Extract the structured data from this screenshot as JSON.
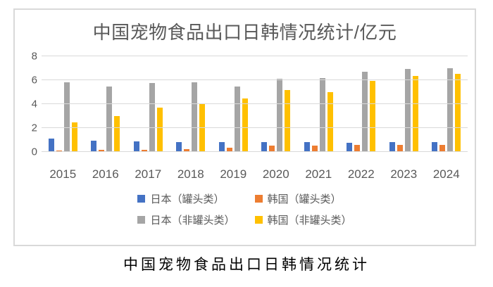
{
  "chart_data": {
    "type": "bar",
    "title": "中国宠物食品出口日韩情况统计/亿元",
    "caption": "中国宠物食品出口日韩情况统计",
    "categories": [
      "2015",
      "2016",
      "2017",
      "2018",
      "2019",
      "2020",
      "2021",
      "2022",
      "2023",
      "2024"
    ],
    "series": [
      {
        "id": "japan-canned",
        "name": "日本（罐头类）",
        "color": "#4472C4",
        "values": [
          1.1,
          0.95,
          0.9,
          0.8,
          0.8,
          0.85,
          0.8,
          0.75,
          0.8,
          0.8
        ]
      },
      {
        "id": "korea-canned",
        "name": "韩国（罐头类）",
        "color": "#ED7D31",
        "values": [
          0.1,
          0.15,
          0.2,
          0.25,
          0.35,
          0.55,
          0.55,
          0.6,
          0.6,
          0.6
        ]
      },
      {
        "id": "japan-noncanned",
        "name": "日本（非罐头类）",
        "color": "#A5A5A5",
        "values": [
          5.8,
          5.5,
          5.75,
          5.8,
          5.5,
          6.1,
          6.2,
          6.7,
          6.95,
          7.0
        ]
      },
      {
        "id": "korea-noncanned",
        "name": "韩国（非罐头类）",
        "color": "#FFC000",
        "values": [
          2.45,
          3.0,
          3.7,
          4.0,
          4.5,
          5.15,
          5.0,
          5.95,
          6.35,
          6.55
        ]
      }
    ],
    "y_ticks": [
      0,
      2,
      4,
      6,
      8
    ],
    "ylim": [
      0,
      8
    ],
    "xlabel": "",
    "ylabel": "",
    "grid": true,
    "legend_position": "bottom",
    "colors": {
      "axis_text": "#595959",
      "title_text": "#595959",
      "gridline": "#d9d9d9",
      "frame_border": "#d9d9d9",
      "caption_text": "#000000",
      "background": "#ffffff"
    }
  }
}
